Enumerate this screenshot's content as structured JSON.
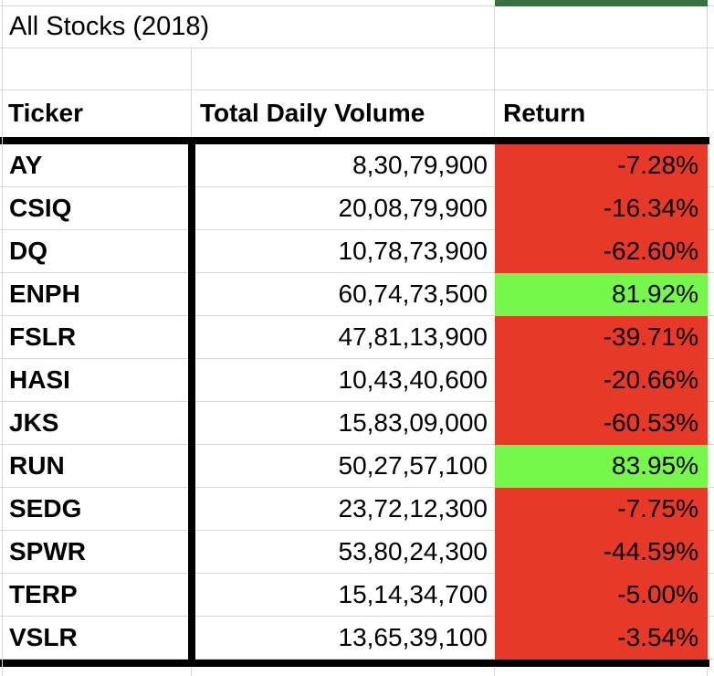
{
  "sheet": {
    "title": "All Stocks (2018)",
    "columns": {
      "ticker": "Ticker",
      "volume": "Total Daily Volume",
      "return": "Return"
    },
    "rows": [
      {
        "ticker": "AY",
        "volume": "8,30,79,900",
        "return_pct": "-7.28%",
        "return_bg": "#E63928"
      },
      {
        "ticker": "CSIQ",
        "volume": "20,08,79,900",
        "return_pct": "-16.34%",
        "return_bg": "#E63928"
      },
      {
        "ticker": "DQ",
        "volume": "10,78,73,900",
        "return_pct": "-62.60%",
        "return_bg": "#E63928"
      },
      {
        "ticker": "ENPH",
        "volume": "60,74,73,500",
        "return_pct": "81.92%",
        "return_bg": "#76F74C"
      },
      {
        "ticker": "FSLR",
        "volume": "47,81,13,900",
        "return_pct": "-39.71%",
        "return_bg": "#E63928"
      },
      {
        "ticker": "HASI",
        "volume": "10,43,40,600",
        "return_pct": "-20.66%",
        "return_bg": "#E63928"
      },
      {
        "ticker": "JKS",
        "volume": "15,83,09,000",
        "return_pct": "-60.53%",
        "return_bg": "#E63928"
      },
      {
        "ticker": "RUN",
        "volume": "50,27,57,100",
        "return_pct": "83.95%",
        "return_bg": "#76F74C"
      },
      {
        "ticker": "SEDG",
        "volume": "23,72,12,300",
        "return_pct": "-7.75%",
        "return_bg": "#E63928"
      },
      {
        "ticker": "SPWR",
        "volume": "53,80,24,300",
        "return_pct": "-44.59%",
        "return_bg": "#E63928"
      },
      {
        "ticker": "TERP",
        "volume": "15,14,34,700",
        "return_pct": "-5.00%",
        "return_bg": "#E63928"
      },
      {
        "ticker": "VSLR",
        "volume": "13,65,39,100",
        "return_pct": "-3.54%",
        "return_bg": "#E63928"
      }
    ],
    "colors": {
      "negative_fill": "#E63928",
      "positive_fill": "#76F74C",
      "top_bar_fill": "#387040",
      "gridline": "#D8D8D8",
      "border": "#000000"
    }
  }
}
